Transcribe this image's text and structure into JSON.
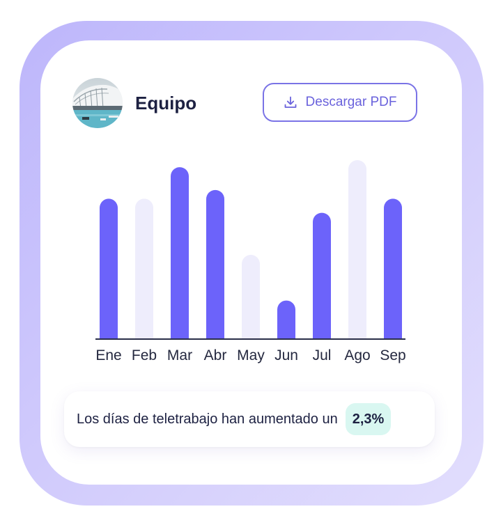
{
  "header": {
    "title": "Equipo",
    "avatar_icon": "building-photo-icon"
  },
  "toolbar": {
    "download_label": "Descargar PDF",
    "download_icon": "download-icon"
  },
  "chart_data": {
    "type": "bar",
    "categories": [
      "Ene",
      "Feb",
      "Mar",
      "Abr",
      "May",
      "Jun",
      "Jul",
      "Ago",
      "Sep"
    ],
    "values": [
      80,
      80,
      98,
      85,
      48,
      22,
      72,
      102,
      80
    ],
    "highlighted": [
      true,
      false,
      true,
      true,
      false,
      true,
      true,
      false,
      true
    ],
    "title": "",
    "xlabel": "",
    "ylabel": "",
    "ylim": [
      0,
      102
    ],
    "grid": false,
    "colors": {
      "highlighted": "#6c63fa",
      "muted": "#eeedfc",
      "axis": "#2a2e48"
    }
  },
  "summary": {
    "text": "Los días de teletrabajo han aumentado un",
    "value": "2,3%",
    "badge_color": "#d9f7f1"
  },
  "colors": {
    "frame": "#c6c0fb",
    "accent": "#6a62dc",
    "text": "#1d2142"
  }
}
